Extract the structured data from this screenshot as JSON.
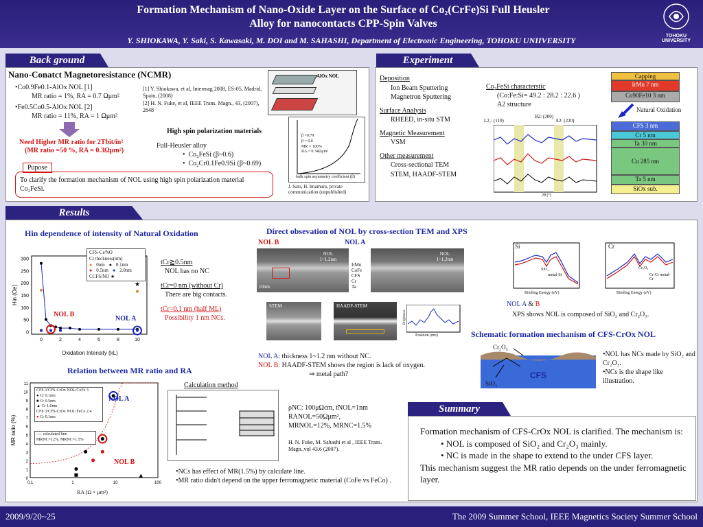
{
  "header": {
    "title_line1": "Formation Mechanism of Nano-Oxide Layer on the Surface of Co₂(CrFe)Si Full Heusler",
    "title_line2": "Alloy for nanocontacts CPP-Spin Valves",
    "authors": "Y. SHIOKAWA, Y. Saki, S. Kawasaki, M. DOI and M. SAHASHI, Department of Electronic Engineering, TOHOKU UNIIVERSITY",
    "logo_text": "TOHOKU\nUNIVERSITY"
  },
  "background": {
    "tab": "Back ground",
    "heading": "Nano-Conatct Magnetoresistance (NCMR)",
    "item1": "•Co0.9Fe0.1-AlOx NOL [1]",
    "item1b": "MR ratio = 1%, RA = 0.7 Ωμm²",
    "item2": "•Fe0.5Co0.5-AlOx NOL [2]",
    "item2b": "MR ratio = 11%, RA = 1 Ωμm²",
    "ref1": "[1] Y. Shiokawa, et al, Intermag 2008, ES-05, Madrid, Spain, (2008)",
    "ref2": "[2] H. N. Fuke, et al, IEEE Trans. Magn., 43, (2007), 2848",
    "need": "Need Higher MR ratio for 2Tbit/in²",
    "need2": "(MR ratio =50 %, RA = 0.3Ωμm²)",
    "purpose_label": "Pupose",
    "purpose_text": "To clarify the formation mechanism of NOL using high spin polarization material Co₂FeSi.",
    "hsp_title": "High spin polarization materials",
    "heusler": "Full-Heusler alloy",
    "h1": "Co₂FeSi (β~0.6)",
    "h2": "Co₂Cr0.1Fe0.9Si (β~0.69)",
    "diagram_label": "AlOx NOL",
    "graph_caption": "J. Sato, H. Imamura, private communication (unpublished)",
    "graph_note1": "β =0.79",
    "graph_note2": "β = 0.6",
    "graph_note3": "MR = 100%",
    "graph_note4": "RA = 0.34Ωμm²",
    "graph_xlabel": "bulk spin asymmetry coefficient (β)",
    "graph_ylabel": "MR ratio(%)"
  },
  "experiment": {
    "tab": "Experiment",
    "dep_h": "Deposition",
    "dep1": "Ion Beam Sputtering",
    "dep2": "Magnetron Sputtering",
    "sa_h": "Surface Analysis",
    "sa1": "RHEED, in-situ STM",
    "mm_h": "Magnetic Measurement",
    "mm1": "VSM",
    "om_h": "Other measurement",
    "om1": "Cross-sectional TEM",
    "om2": "STEM, HAADF-STEM",
    "char_h": "Co₂FeSi characterstic",
    "char1": "(Co:Fe:Si= 49.2 : 28.2 : 22.6 )",
    "char2": "A2 structure",
    "xrd_b2": "B2: (200)",
    "xrd_l21": "L2₁: (110)",
    "xrd_a2": "A2: (220)",
    "xrd_yl": "Intensity (cps)",
    "xrd_xl": "2θ (°)",
    "stack": [
      "Capping",
      "IrMn 7 nm",
      "Co90Fe10 3 nm",
      "CFS 3 nm",
      "Cr 5 nm",
      "Ta 30 nm",
      "Cu 285 nm",
      "Ta 5 nm",
      "SiOx sub."
    ],
    "natural_ox": "Natural Oxidation"
  },
  "results": {
    "tab": "Results",
    "hin_title": "Hin dependence of intensity of Natural Oxidation",
    "hin_legend_title": "CFS-Cr/NO",
    "hin_legend_sub": "Cr thickness(nm)",
    "hin_leg": [
      "0nm",
      "0.1nm",
      "0.5nm",
      "2.0nm",
      "CCFS/NO"
    ],
    "hin_xlabel": "Oxidation Intensity (kL)",
    "hin_ylabel": "Hin (Oe)",
    "nolb": "NOL B",
    "nola": "NOL A",
    "tcr1": "tCr≧0.5nm",
    "tcr1b": "NOL has no NC",
    "tcr2": "tCr=0 nm (without Cr)",
    "tcr2b": "There are big contacts.",
    "tcr3": "tCr=0.1 nm (half ML)",
    "tcr3b": "Possibility 1 nm NCs.",
    "rel_title": "Relation between MR ratio and RA",
    "calc_title": "Calculation method",
    "mr_leg": [
      "CFS 3/CFS-CrOx NOL/CoFe 3",
      "Cr 0.1nm",
      "Cr 0.5nm",
      "Cr 1.0nm",
      "CFS 3/CFS-CrOx NOL/FeCo 2.4",
      "Cr 0.1nm",
      "calculated line",
      "MRNC=12%, MRNC=1.5%"
    ],
    "mr_xlabel": "RA (Ω・μm²)",
    "mr_ylabel": "MR ratio (%)",
    "params1": "ρNC: 100μΩcm, tNOL=1nm",
    "params2": "RANOL=50Ωμm²,",
    "params3": "MRNOL=12%, MRNC=1.5%",
    "params_ref": "H. N. Fuke, M. Sahashi et al , IEEE Trans. Magn.,vol 43.6 (2007).",
    "nc1": "•NCs has effect of MR(1.5%) by calculate line.",
    "nc2": "•MR ratio didn't depend on the upper ferromagnetic material (CoFe vs FeCo) .",
    "tem_title": "Direct obsevation of NOL by cross-section TEM and XPS",
    "tem_nolb": "NOL B",
    "tem_nola": "NOL A",
    "tem_nol": "NOL 1~1.2nm",
    "tem_scale": "10nm",
    "tem_layers": [
      "IrMn",
      "CoFe",
      "CFS",
      "Cr",
      "Ta"
    ],
    "stem": "STEM",
    "haadf": "HAADF-STEM",
    "pos_label": "Position (nm)",
    "bright": "Brightness",
    "nola_desc_label": "NOL A:",
    "nola_desc": "thickness 1~1.2 nm without NC.",
    "nolb_desc_label": "NOL B:",
    "nolb_desc": "HAADF-STEM shows the region is lack of oxygen.",
    "nolb_desc2": "⇒ metal path?",
    "xps_si": "Si",
    "xps_cr": "Cr",
    "xps_xl": "Binding Energy (eV)",
    "xps_yl": "Intensity (a.u.)",
    "xps_legend_a": "NOL A",
    "xps_legend_b": "B",
    "xps_desc": "XPS shows NOL is composed of SiO₂ and Cr₂O₃.",
    "xps_sio2": "SiO₂",
    "xps_metal_si": "metal-Si",
    "xps_cr2o3": "Cr₂O₃",
    "xps_crcr": "Cr-Cr metal-Cr",
    "schem_title": "Schematic formation mechanism of CFS-CrOx NOL",
    "schem_cr2o3": "Cr₂O₃",
    "schem_sio2": "SiO₂",
    "schem_cfs": "CFS",
    "schem1": "•NOL has NCs made by SiO₂ and Cr₂O₃.",
    "schem2": "•NCs is the shape like illustration."
  },
  "summary": {
    "tab": "Summary",
    "intro": "Formation mechanism of CFS-CrOx NOL is clarified. The mechanism is:",
    "b1": "NOL is composed of SiO₂ and Cr₂O₃ mainly.",
    "b2": "NC is made in the shape to extend to the under CFS layer.",
    "outro": "This mechanism suggest the MR ratio depends on the under ferromagnetic layer."
  },
  "footer": {
    "date": "2009/9/20~25",
    "event": "The 2009 Summer School, IEEE Magnetics Society Summer School"
  },
  "chart_data": [
    {
      "type": "scatter",
      "title": "Hin dependence of intensity of Natural Oxidation",
      "xlabel": "Oxidation Intensity (kL)",
      "ylabel": "Hin (Oe)",
      "xlim": [
        -1,
        11
      ],
      "ylim": [
        -10,
        310
      ],
      "series": [
        {
          "name": "0nm",
          "x": [
            0,
            10
          ],
          "y": [
            170,
            165
          ]
        },
        {
          "name": "0.1nm",
          "x": [
            0,
            0.5,
            1,
            1.5,
            2,
            3,
            4,
            6,
            8,
            10
          ],
          "y": [
            280,
            50,
            25,
            20,
            15,
            15,
            10,
            10,
            10,
            10
          ]
        },
        {
          "name": "0.5nm",
          "x": [
            0,
            1,
            2
          ],
          "y": [
            5,
            5,
            5
          ]
        },
        {
          "name": "2.0nm",
          "x": [
            0,
            1,
            2,
            10
          ],
          "y": [
            5,
            5,
            5,
            5
          ]
        },
        {
          "name": "CCFS/NO",
          "x": [
            10
          ],
          "y": [
            195
          ]
        }
      ]
    },
    {
      "type": "scatter",
      "title": "Relation between MR ratio and RA",
      "xlabel": "RA (Ω・μm²)",
      "ylabel": "MR ratio (%)",
      "xscale": "log",
      "xlim": [
        0.1,
        100
      ],
      "ylim": [
        0,
        11
      ],
      "series": [
        {
          "name": "Cr 0.1nm",
          "x": [
            1.2,
            2,
            5,
            9
          ],
          "y": [
            1.0,
            3.0,
            4.5,
            9.5
          ]
        },
        {
          "name": "Cr 0.5nm",
          "x": [
            1.2
          ],
          "y": [
            0.3
          ]
        },
        {
          "name": "Cr 1.0nm",
          "x": [
            40
          ],
          "y": [
            0.2
          ]
        },
        {
          "name": "Cr 0.1nm",
          "x": [
            3,
            5
          ],
          "y": [
            2.0,
            3.0
          ]
        }
      ]
    }
  ]
}
